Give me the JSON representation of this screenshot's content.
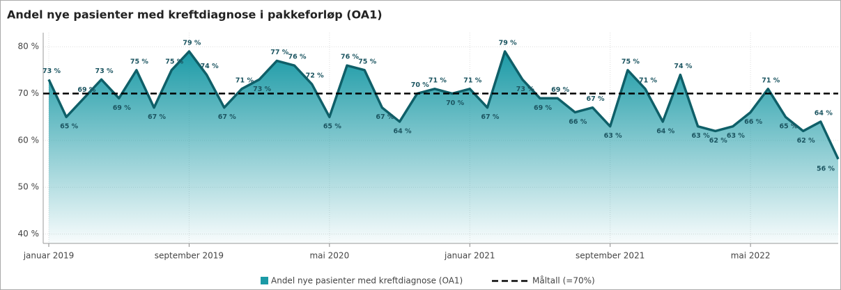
{
  "chart_data": {
    "type": "area",
    "title": "Andel nye pasienter med kreftdiagnose i pakkeforløp (OA1)",
    "categories": [
      "januar 2019",
      null,
      null,
      null,
      null,
      null,
      null,
      null,
      "september 2019",
      null,
      null,
      null,
      null,
      null,
      null,
      null,
      "mai 2020",
      null,
      null,
      null,
      null,
      null,
      null,
      null,
      "januar 2021",
      null,
      null,
      null,
      null,
      null,
      null,
      null,
      "september 2021",
      null,
      null,
      null,
      null,
      null,
      null,
      null,
      "mai 2022",
      null,
      null,
      null,
      null,
      null
    ],
    "series": [
      {
        "name": "Andel nye pasienter med kreftdiagnose (OA1)",
        "color": "#1b9aa6",
        "line_color": "#0f5f68",
        "values": [
          73,
          65,
          69,
          73,
          69,
          75,
          67,
          75,
          79,
          74,
          67,
          71,
          73,
          77,
          76,
          72,
          65,
          76,
          75,
          67,
          64,
          70,
          71,
          70,
          71,
          67,
          79,
          73,
          69,
          69,
          66,
          67,
          63,
          75,
          71,
          64,
          74,
          63,
          62,
          63,
          66,
          71,
          65,
          62,
          64,
          56
        ],
        "value_labels": [
          "73 %",
          "65 %",
          "69 %",
          "73 %",
          "69 %",
          "75 %",
          "67 %",
          "75 %",
          "79 %",
          "74 %",
          "67 %",
          "71 %",
          "73 %",
          "77 %",
          "76 %",
          "72 %",
          "65 %",
          "76 %",
          "75 %",
          "67 %",
          "64 %",
          "70 %",
          "71 %",
          "70 %",
          "71 %",
          "67 %",
          "79 %",
          "73 %",
          "69 %",
          "69 %",
          "66 %",
          "67 %",
          "63 %",
          "75 %",
          "71 %",
          "64 %",
          "74 %",
          "63 %",
          "62 %",
          "63 %",
          "66 %",
          "71 %",
          "65 %",
          "62 %",
          "64 %",
          "56 %"
        ]
      },
      {
        "name": "Måltall (=70%)",
        "color": "#000000",
        "target": 70
      }
    ],
    "ylim": [
      38,
      83
    ],
    "yticks": [
      {
        "value": 40,
        "label": "40 %"
      },
      {
        "value": 50,
        "label": "50 %"
      },
      {
        "value": 60,
        "label": "60 %"
      },
      {
        "value": 70,
        "label": "70 %"
      },
      {
        "value": 80,
        "label": "80 %"
      }
    ],
    "grid": true
  }
}
